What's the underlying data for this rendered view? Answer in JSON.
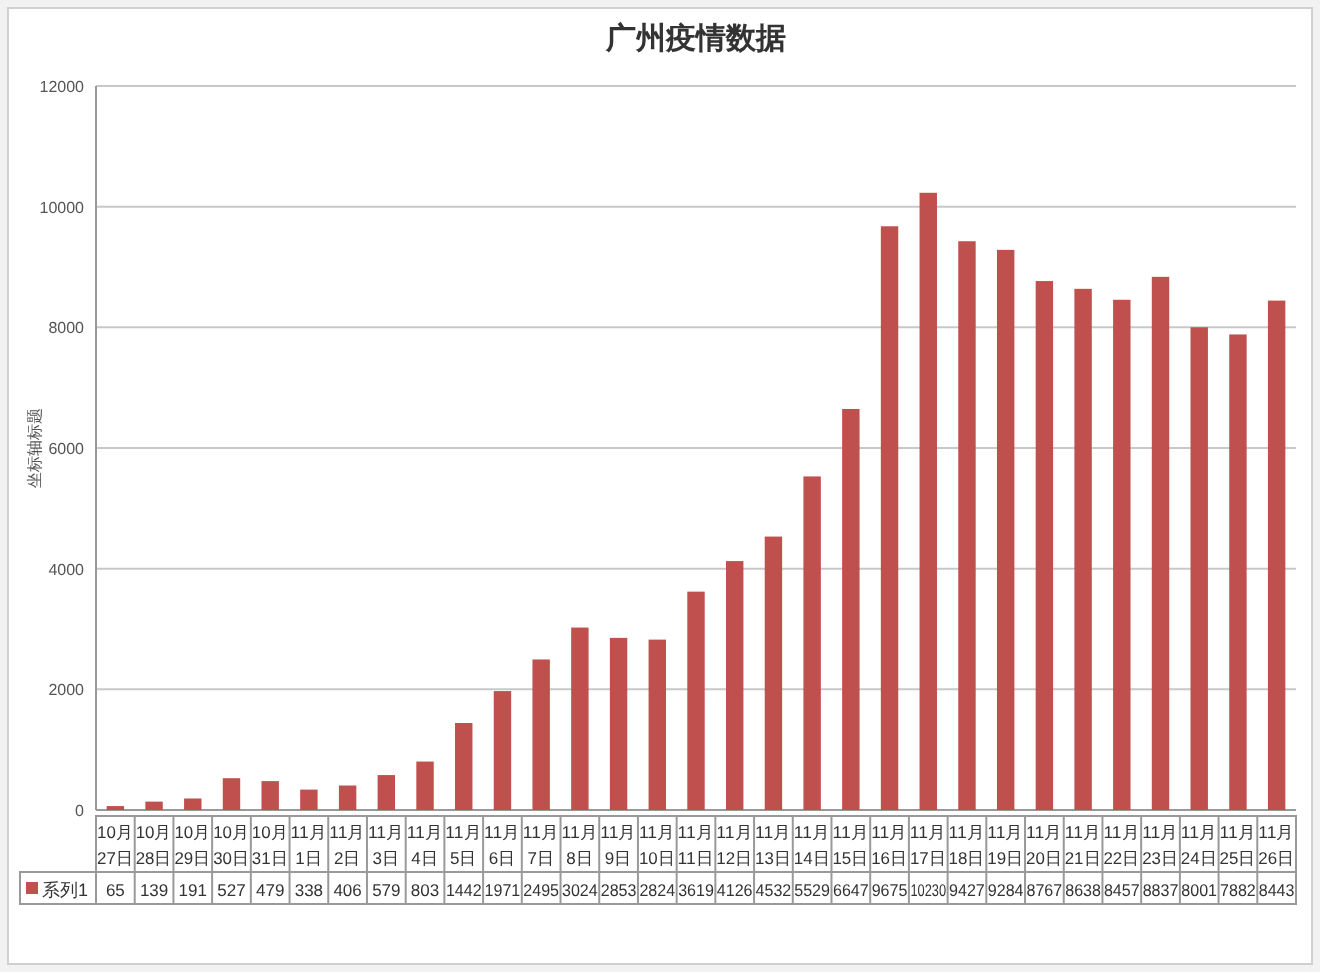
{
  "chart_data": {
    "type": "bar",
    "title": "广州疫情数据",
    "ylabel": "坐标轴标题",
    "categories": [
      "10月27日",
      "10月28日",
      "10月29日",
      "10月30日",
      "10月31日",
      "11月1日",
      "11月2日",
      "11月3日",
      "11月4日",
      "11月5日",
      "11月6日",
      "11月7日",
      "11月8日",
      "11月9日",
      "11月10日",
      "11月11日",
      "11月12日",
      "11月13日",
      "11月14日",
      "11月15日",
      "11月16日",
      "11月17日",
      "11月18日",
      "11月19日",
      "11月20日",
      "11月21日",
      "11月22日",
      "11月23日",
      "11月24日",
      "11月25日",
      "11月26日"
    ],
    "series": [
      {
        "name": "系列1",
        "color": "#c0504d",
        "values": [
          65,
          139,
          191,
          527,
          479,
          338,
          406,
          579,
          803,
          1442,
          1971,
          2495,
          3024,
          2853,
          2824,
          3619,
          4126,
          4532,
          5529,
          6647,
          9675,
          10230,
          9427,
          9284,
          8767,
          8638,
          8457,
          8837,
          8001,
          7882,
          8443
        ]
      }
    ],
    "ylim": [
      0,
      12000
    ],
    "yticks": [
      0,
      2000,
      4000,
      6000,
      8000,
      10000,
      12000
    ],
    "grid": "y",
    "data_labels": true
  }
}
